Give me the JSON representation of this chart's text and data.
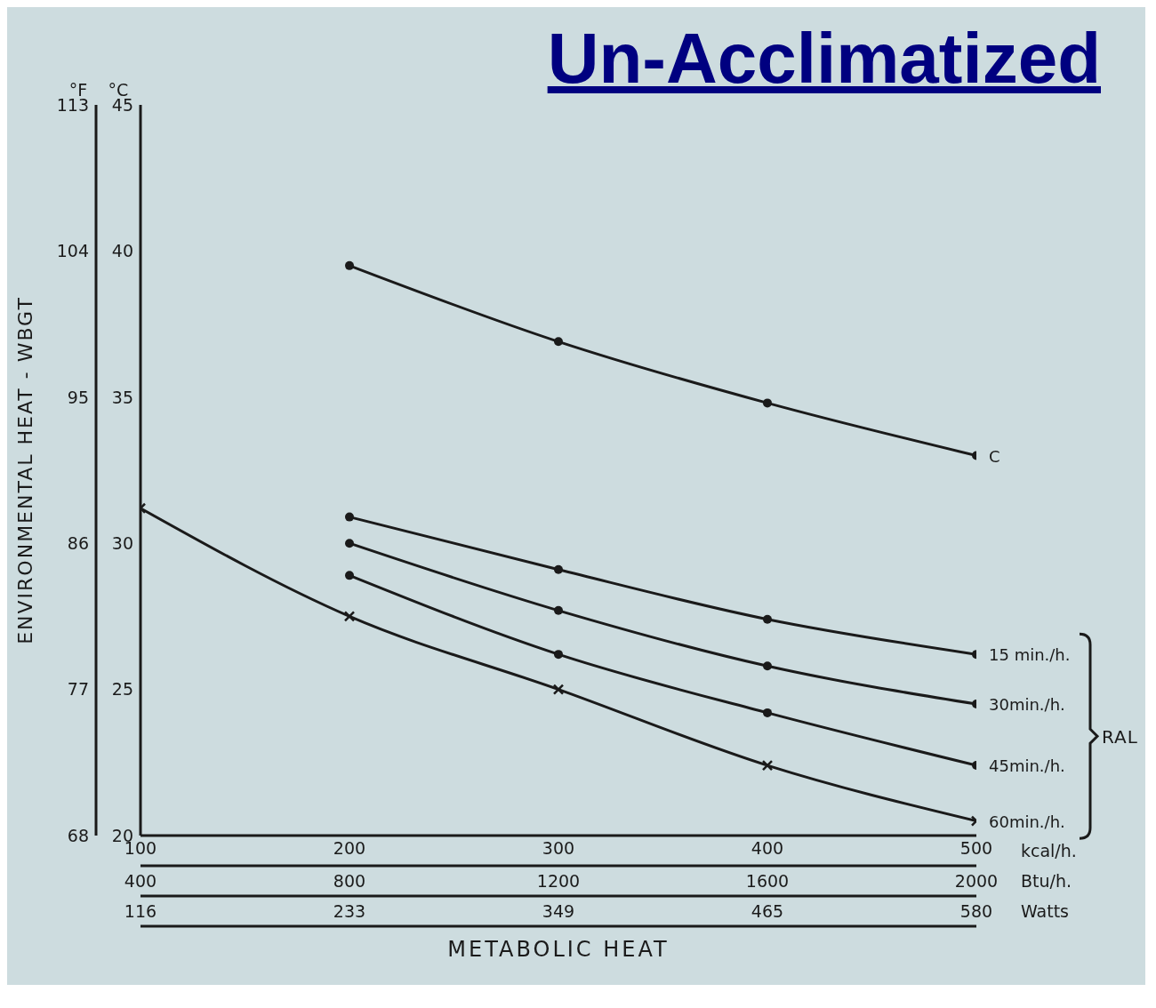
{
  "chart_data": {
    "type": "line",
    "title": "Un-Acclimatized",
    "xlabel": "METABOLIC HEAT",
    "ylabel": "ENVIRONMENTAL HEAT - WBGT",
    "x": [
      100,
      200,
      300,
      400,
      500
    ],
    "series": [
      {
        "name": "C",
        "color": "#1a1a1a",
        "marker": "circle",
        "axis": "y2",
        "values": [
          null,
          39.5,
          36.9,
          34.8,
          33.0
        ]
      },
      {
        "name": "15 min./h.",
        "color": "#1a1a1a",
        "marker": "circle",
        "axis": "y2",
        "values": [
          null,
          30.9,
          29.1,
          27.4,
          26.2
        ]
      },
      {
        "name": "30min./h.",
        "color": "#1a1a1a",
        "marker": "circle",
        "axis": "y2",
        "values": [
          null,
          30.0,
          27.7,
          25.8,
          24.5
        ]
      },
      {
        "name": "45min./h.",
        "color": "#1a1a1a",
        "marker": "circle",
        "axis": "y2",
        "values": [
          null,
          28.9,
          26.2,
          24.2,
          22.4
        ]
      },
      {
        "name": "60min./h.",
        "color": "#1a1a1a",
        "marker": "cross",
        "axis": "y2",
        "values": [
          31.2,
          27.5,
          25.0,
          22.4,
          20.5
        ]
      }
    ],
    "xlim": [
      100,
      500
    ],
    "xticks": [
      100,
      200,
      300,
      400,
      500
    ],
    "x2lim": [
      400,
      2000
    ],
    "x2ticks": [
      400,
      800,
      1200,
      1600,
      2000
    ],
    "ylim": [
      68,
      113
    ],
    "yticks": [
      68,
      77,
      86,
      95,
      104,
      113
    ],
    "y2lim": [
      20,
      45
    ],
    "y2ticks": [
      20,
      25,
      30,
      35,
      40,
      45
    ],
    "annotations": [
      "°F",
      "°C",
      "kcal/h.",
      "Btu/h.",
      "Watts",
      "RAL",
      "116",
      "233",
      "349",
      "465",
      "580"
    ],
    "grid": false,
    "legend": false,
    "line_style": "solid"
  }
}
